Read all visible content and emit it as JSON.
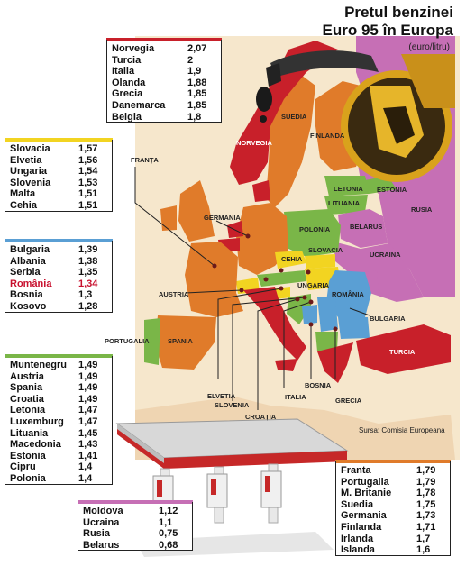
{
  "title_line1": "Pretul benzinei",
  "title_line2": "Euro 95 în Europa",
  "unit": "(euro/litru)",
  "source": "Sursa: Comisia Europeana",
  "colors": {
    "red": "#c8202a",
    "orange": "#e07b2a",
    "yellow": "#f2d421",
    "blue": "#5a9fd4",
    "green": "#7ab648",
    "purple": "#c66fb5",
    "sea": "#f6e7cc",
    "land": "#efd5b2"
  },
  "groups": {
    "red": [
      {
        "name": "Norvegia",
        "value": "2,07"
      },
      {
        "name": "Turcia",
        "value": "2"
      },
      {
        "name": "Italia",
        "value": "1,9"
      },
      {
        "name": "Olanda",
        "value": "1,88"
      },
      {
        "name": "Grecia",
        "value": "1,85"
      },
      {
        "name": "Danemarca",
        "value": "1,85"
      },
      {
        "name": "Belgia",
        "value": "1,8"
      }
    ],
    "yellow": [
      {
        "name": "Slovacia",
        "value": "1,57"
      },
      {
        "name": "Elvetia",
        "value": "1,56"
      },
      {
        "name": "Ungaria",
        "value": "1,54"
      },
      {
        "name": "Slovenia",
        "value": "1,53"
      },
      {
        "name": "Malta",
        "value": "1,51"
      },
      {
        "name": "Cehia",
        "value": "1,51"
      }
    ],
    "blue": [
      {
        "name": "Bulgaria",
        "value": "1,39"
      },
      {
        "name": "Albania",
        "value": "1,38"
      },
      {
        "name": "Serbia",
        "value": "1,35"
      },
      {
        "name": "România",
        "value": "1,34"
      },
      {
        "name": "Bosnia",
        "value": "1,3"
      },
      {
        "name": "Kosovo",
        "value": "1,28"
      }
    ],
    "green": [
      {
        "name": "Muntenegru",
        "value": "1,49"
      },
      {
        "name": "Austria",
        "value": "1,49"
      },
      {
        "name": "Spania",
        "value": "1,49"
      },
      {
        "name": "Croatia",
        "value": "1,49"
      },
      {
        "name": "Letonia",
        "value": "1,47"
      },
      {
        "name": "Luxemburg",
        "value": "1,47"
      },
      {
        "name": "Lituania",
        "value": "1,45"
      },
      {
        "name": "Macedonia",
        "value": "1,43"
      },
      {
        "name": "Estonia",
        "value": "1,41"
      },
      {
        "name": "Cipru",
        "value": "1,4"
      },
      {
        "name": "Polonia",
        "value": "1,4"
      }
    ],
    "purple": [
      {
        "name": "Moldova",
        "value": "1,12"
      },
      {
        "name": "Ucraina",
        "value": "1,1"
      },
      {
        "name": "Rusia",
        "value": "0,75"
      },
      {
        "name": "Belarus",
        "value": "0,68"
      }
    ],
    "orange": [
      {
        "name": "Franta",
        "value": "1,79"
      },
      {
        "name": "Portugalia",
        "value": "1,79"
      },
      {
        "name": "M. Britanie",
        "value": "1,78"
      },
      {
        "name": "Suedia",
        "value": "1,75"
      },
      {
        "name": "Germania",
        "value": "1,73"
      },
      {
        "name": "Finlanda",
        "value": "1,71"
      },
      {
        "name": "Irlanda",
        "value": "1,7"
      },
      {
        "name": "Islanda",
        "value": "1,6"
      }
    ]
  },
  "highlight_country": "România",
  "map_labels": {
    "norvegia": "NORVEGIA",
    "suedia": "SUEDIA",
    "finlanda": "FINLANDA",
    "estonia": "ESTONIA",
    "letonia": "LETONIA",
    "lituania": "LITUANIA",
    "rusia": "RUSIA",
    "belarus": "BELARUS",
    "polonia": "POLONIA",
    "germania": "GERMANIA",
    "franta": "FRANȚA",
    "cehia": "CEHIA",
    "slovacia": "SLOVACIA",
    "ungaria": "UNGARIA",
    "austria": "AUSTRIA",
    "ucraina": "UCRAINA",
    "romania": "ROMÂNIA",
    "bulgaria": "BULGARIA",
    "turcia": "TURCIA",
    "grecia": "GRECIA",
    "portugalia": "PORTUGALIA",
    "spania": "SPANIA",
    "elvetia": "ELVETIA",
    "slovenia": "SLOVENIA",
    "croatia": "CROAȚIA",
    "italia": "ITALIA",
    "bosnia": "BOSNIA"
  }
}
